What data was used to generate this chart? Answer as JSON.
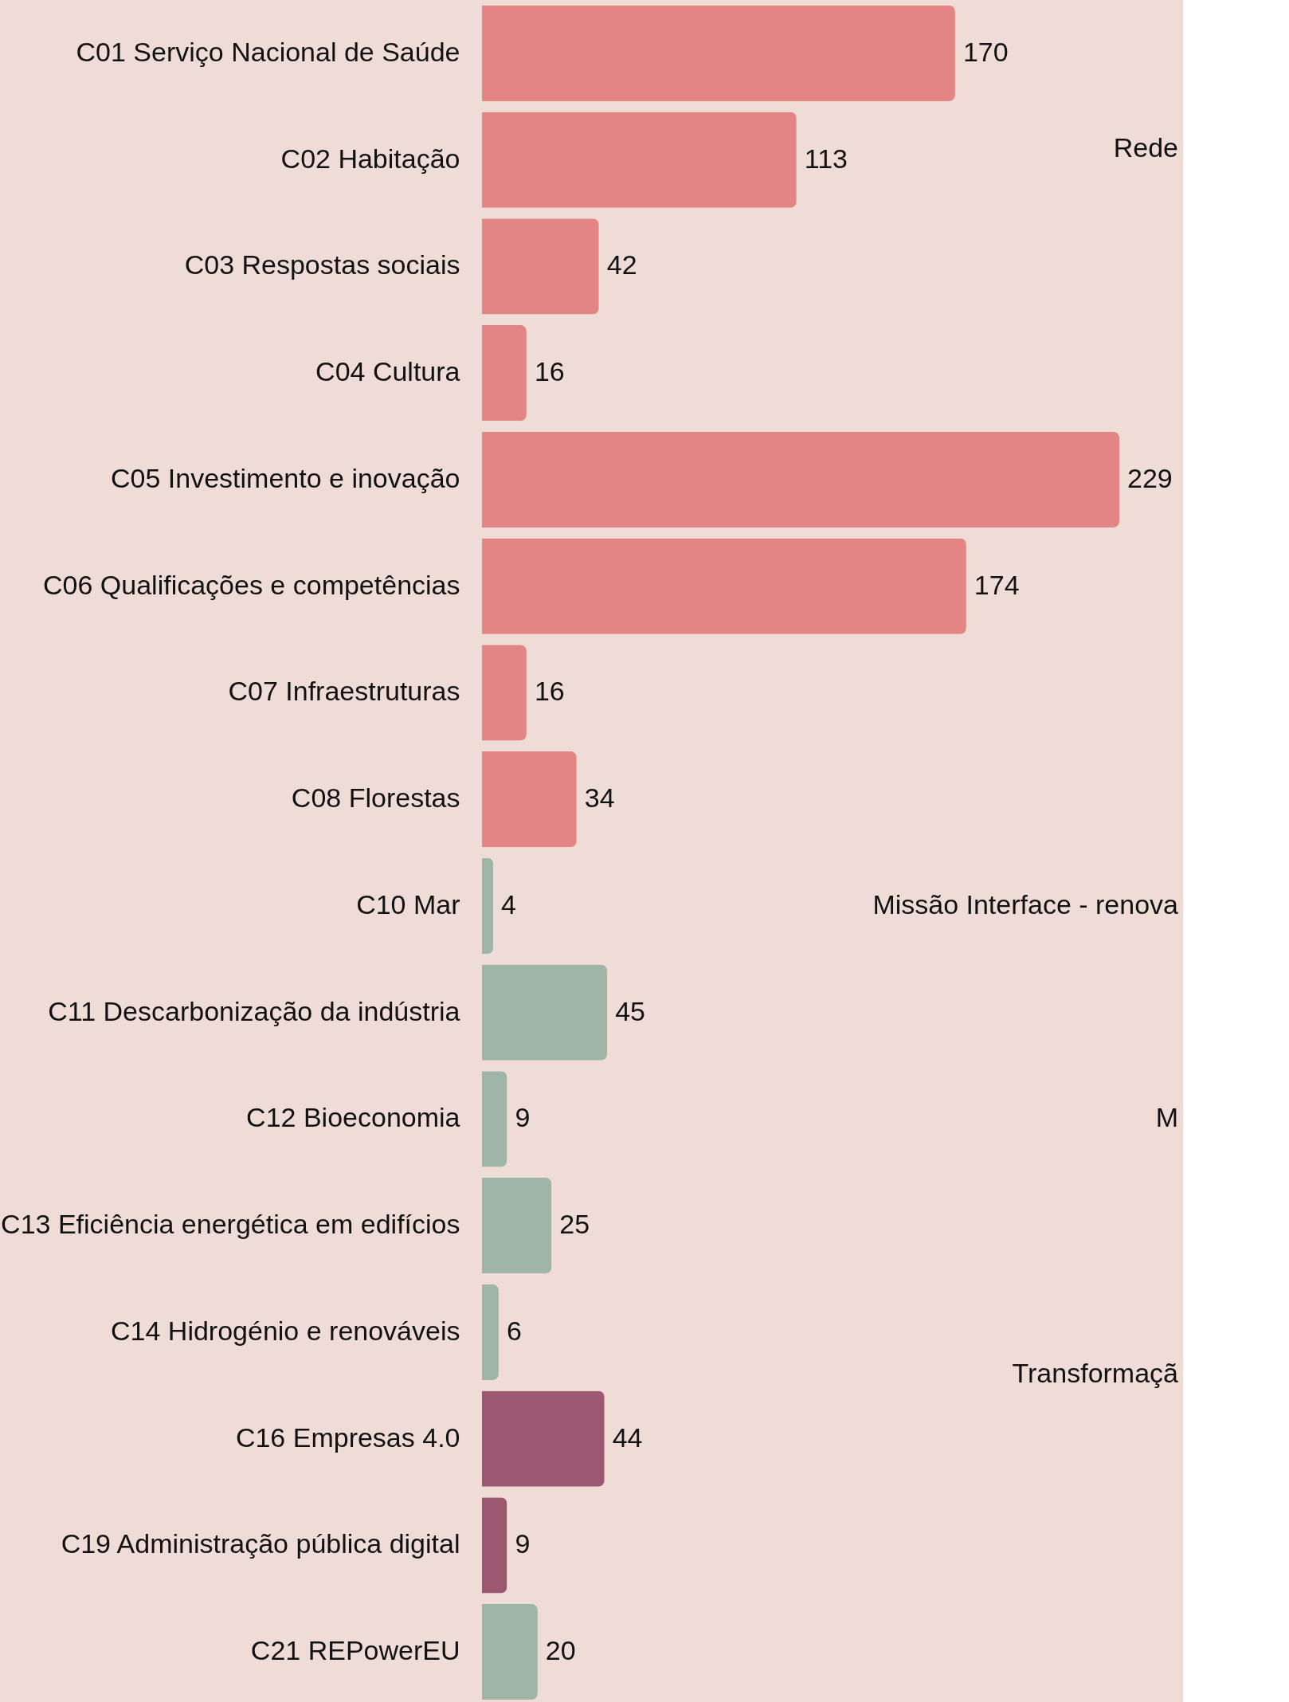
{
  "chart_data": {
    "type": "bar",
    "orientation": "horizontal",
    "data_labels": true,
    "categories": [
      "C01 Serviço Nacional de Saúde",
      "C02 Habitação",
      "C03 Respostas sociais",
      "C04 Cultura",
      "C05 Investimento e inovação",
      "C06 Qualificações e competências",
      "C07 Infraestruturas",
      "C08 Florestas",
      "C10 Mar",
      "C11 Descarbonização da indústria",
      "C12 Bioeconomia",
      "C13 Eficiência energética em edifícios",
      "C14 Hidrogénio e renováveis",
      "C16 Empresas 4.0",
      "C19 Administração pública digital",
      "C21 REPowerEU"
    ],
    "values": [
      170,
      113,
      42,
      16,
      229,
      174,
      16,
      34,
      4,
      45,
      9,
      25,
      6,
      44,
      9,
      20
    ],
    "colors": [
      "#e38585",
      "#e38585",
      "#e38585",
      "#e38585",
      "#e38585",
      "#e38585",
      "#e38585",
      "#e38585",
      "#9fb5a7",
      "#9fb5a7",
      "#9fb5a7",
      "#9fb5a7",
      "#9fb5a7",
      "#9b5870",
      "#9b5870",
      "#9fb5a7"
    ],
    "annotations": [
      "Rede",
      "Missão Interface - renova",
      "M",
      "Transformaçã"
    ]
  }
}
